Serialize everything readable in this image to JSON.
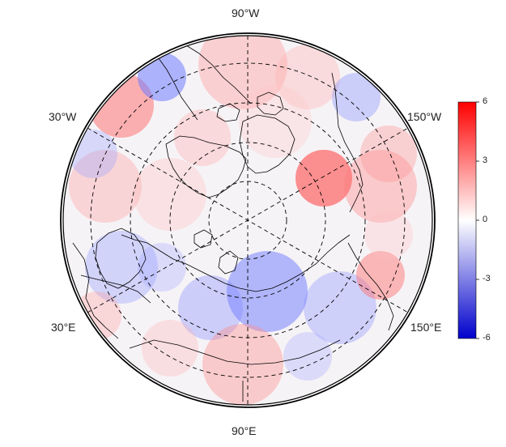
{
  "map": {
    "projection": "north-polar-stereographic",
    "longitude_labels": {
      "top": "90°W",
      "bottom": "90°E",
      "upper_left": "30°W",
      "upper_right": "150°W",
      "lower_left": "30°E",
      "lower_right": "150°E"
    },
    "grid_style": "dashed",
    "anomaly_field_colormap": [
      "#0000ff",
      "#ffffff",
      "#ff0000"
    ]
  },
  "colorbar": {
    "min": -6,
    "max": 6,
    "tick_labels": [
      "6",
      "3",
      "0",
      "-3",
      "-6"
    ],
    "colors": {
      "high": "#ff0000",
      "mid": "#ffffff",
      "low": "#0000cc"
    }
  }
}
